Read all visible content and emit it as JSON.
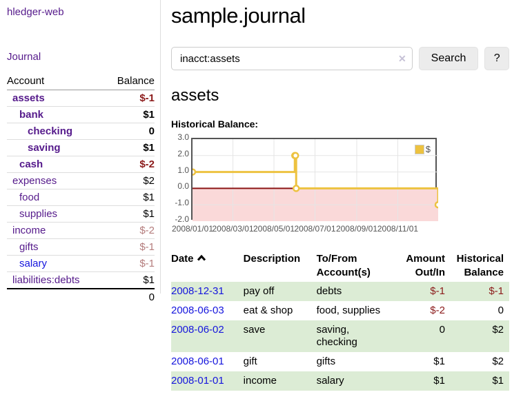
{
  "app": {
    "brand": "hledger-web"
  },
  "sidebar": {
    "nav_journal": "Journal",
    "accounts": {
      "headers": {
        "account": "Account",
        "balance": "Balance"
      },
      "rows": [
        {
          "account": "assets",
          "balance": "$-1",
          "depth": 1,
          "bold": true,
          "negative": "strong"
        },
        {
          "account": "bank",
          "balance": "$1",
          "depth": 2,
          "bold": true,
          "negative": "none"
        },
        {
          "account": "checking",
          "balance": "0",
          "depth": 3,
          "bold": true,
          "negative": "none"
        },
        {
          "account": "saving",
          "balance": "$1",
          "depth": 3,
          "bold": true,
          "negative": "none"
        },
        {
          "account": "cash",
          "balance": "$-2",
          "depth": 2,
          "bold": true,
          "negative": "strong"
        },
        {
          "account": "expenses",
          "balance": "$2",
          "depth": 1,
          "bold": false,
          "negative": "none"
        },
        {
          "account": "food",
          "balance": "$1",
          "depth": 2,
          "bold": false,
          "negative": "none"
        },
        {
          "account": "supplies",
          "balance": "$1",
          "depth": 2,
          "bold": false,
          "negative": "none"
        },
        {
          "account": "income",
          "balance": "$-2",
          "depth": 1,
          "bold": false,
          "negative": "soft"
        },
        {
          "account": "gifts",
          "balance": "$-1",
          "depth": 2,
          "bold": false,
          "negative": "soft"
        },
        {
          "account": "salary",
          "balance": "$-1",
          "depth": 2,
          "bold": false,
          "negative": "soft",
          "link_style": "blue"
        },
        {
          "account": "liabilities:debts",
          "balance": "$1",
          "depth": 1,
          "bold": false,
          "negative": "none"
        }
      ],
      "total": "0"
    }
  },
  "main": {
    "title": "sample.journal",
    "search": {
      "value": "inacct:assets",
      "clear_icon": "✕",
      "button_label": "Search",
      "help_label": "?"
    },
    "account_heading": "assets",
    "chart_label": "Historical Balance:"
  },
  "chart_data": {
    "type": "line",
    "style": "steps",
    "title": "Historical Balance:",
    "series": [
      {
        "name": "$",
        "color": "#edc240",
        "points": [
          {
            "date": "2008-01-01",
            "day": 0,
            "value": 1
          },
          {
            "date": "2008-06-01",
            "day": 152,
            "value": 2
          },
          {
            "date": "2008-06-02",
            "day": 153,
            "value": 2
          },
          {
            "date": "2008-06-03",
            "day": 154,
            "value": 0
          },
          {
            "date": "2008-12-31",
            "day": 365,
            "value": -1
          }
        ]
      }
    ],
    "x_ticks": [
      {
        "label": "2008/01/01",
        "day": 0
      },
      {
        "label": "2008/03/01",
        "day": 60
      },
      {
        "label": "2008/05/01",
        "day": 121
      },
      {
        "label": "2008/07/01",
        "day": 182
      },
      {
        "label": "2008/09/01",
        "day": 244
      },
      {
        "label": "2008/11/01",
        "day": 305
      }
    ],
    "x_range_days": 365,
    "y_ticks": [
      3.0,
      2.0,
      1.0,
      0.0,
      -1.0,
      -2.0
    ],
    "ylim": [
      -2,
      3
    ],
    "grid": true,
    "legend": {
      "label": "$",
      "position": "top-right"
    },
    "colors": {
      "line": "#edc240",
      "marker_fill": "#ffffff",
      "negative_region": "#fad9d9",
      "zero_line": "#8b1414",
      "gridline": "#e5e5e5",
      "border": "#545454",
      "tick_text": "#545454"
    }
  },
  "register": {
    "sort": {
      "column": "Date",
      "direction": "ascending"
    },
    "headers": [
      {
        "lines": [
          "Date"
        ],
        "align": "left",
        "sortable": true
      },
      {
        "lines": [
          "Description"
        ],
        "align": "left"
      },
      {
        "lines": [
          "To/From",
          "Account(s)"
        ],
        "align": "left"
      },
      {
        "lines": [
          "Amount",
          "Out/In"
        ],
        "align": "right"
      },
      {
        "lines": [
          "Historical",
          "Balance"
        ],
        "align": "right"
      }
    ],
    "rows": [
      {
        "date": "2008-12-31",
        "description": "pay off",
        "accounts_lines": [
          "debts"
        ],
        "amount": "$-1",
        "amount_negative": true,
        "balance": "$-1",
        "balance_negative": true,
        "shaded": true
      },
      {
        "date": "2008-06-03",
        "description": "eat & shop",
        "accounts_lines": [
          "food, supplies"
        ],
        "amount": "$-2",
        "amount_negative": true,
        "balance": "0",
        "balance_negative": false,
        "shaded": false
      },
      {
        "date": "2008-06-02",
        "description": "save",
        "accounts_lines": [
          "saving,",
          "checking"
        ],
        "amount": "0",
        "amount_negative": false,
        "balance": "$2",
        "balance_negative": false,
        "shaded": true
      },
      {
        "date": "2008-06-01",
        "description": "gift",
        "accounts_lines": [
          "gifts"
        ],
        "amount": "$1",
        "amount_negative": false,
        "balance": "$2",
        "balance_negative": false,
        "shaded": false
      },
      {
        "date": "2008-01-01",
        "description": "income",
        "accounts_lines": [
          "salary"
        ],
        "amount": "$1",
        "amount_negative": false,
        "balance": "$1",
        "balance_negative": false,
        "shaded": true
      }
    ]
  }
}
